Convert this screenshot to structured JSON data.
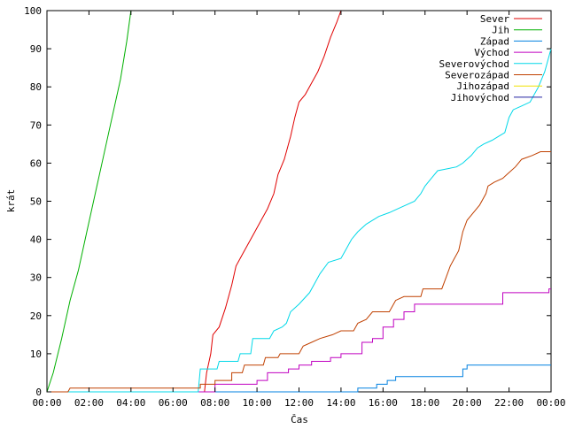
{
  "chart_data": {
    "type": "line",
    "title": "",
    "xlabel": "Čas",
    "ylabel": "krát",
    "ylim": [
      0,
      100
    ],
    "xlim": [
      0,
      24
    ],
    "y_ticks": [
      0,
      10,
      20,
      30,
      40,
      50,
      60,
      70,
      80,
      90,
      100
    ],
    "x_ticks": [
      0,
      2,
      4,
      6,
      8,
      10,
      12,
      14,
      16,
      18,
      20,
      22,
      24
    ],
    "x_tick_labels": [
      "00:00",
      "02:00",
      "04:00",
      "06:00",
      "08:00",
      "10:00",
      "12:00",
      "14:00",
      "16:00",
      "18:00",
      "20:00",
      "22:00",
      "00:00"
    ],
    "grid": false,
    "legend_position": "top-right",
    "series": [
      {
        "name": "Sever",
        "color": "#e00000",
        "points": [
          [
            0,
            0
          ],
          [
            7.5,
            0
          ],
          [
            7.6,
            5
          ],
          [
            7.8,
            10
          ],
          [
            7.9,
            15
          ],
          [
            8.2,
            17
          ],
          [
            8.5,
            22
          ],
          [
            8.8,
            28
          ],
          [
            9.0,
            33
          ],
          [
            9.3,
            36
          ],
          [
            9.6,
            39
          ],
          [
            9.9,
            42
          ],
          [
            10.2,
            45
          ],
          [
            10.5,
            48
          ],
          [
            10.8,
            52
          ],
          [
            11.0,
            57
          ],
          [
            11.3,
            61
          ],
          [
            11.6,
            67
          ],
          [
            11.8,
            72
          ],
          [
            12.0,
            76
          ],
          [
            12.3,
            78
          ],
          [
            12.6,
            81
          ],
          [
            12.9,
            84
          ],
          [
            13.2,
            88
          ],
          [
            13.5,
            93
          ],
          [
            13.8,
            97
          ],
          [
            14.0,
            100
          ]
        ]
      },
      {
        "name": "Jih",
        "color": "#00b000",
        "points": [
          [
            0,
            0
          ],
          [
            0.3,
            5
          ],
          [
            0.7,
            14
          ],
          [
            1.1,
            24
          ],
          [
            1.5,
            32
          ],
          [
            1.9,
            42
          ],
          [
            2.3,
            52
          ],
          [
            2.7,
            62
          ],
          [
            3.1,
            72
          ],
          [
            3.5,
            82
          ],
          [
            3.8,
            92
          ],
          [
            4.0,
            100
          ]
        ]
      },
      {
        "name": "Západ",
        "color": "#0080e0",
        "points": [
          [
            0,
            0
          ],
          [
            14.8,
            0
          ],
          [
            14.8,
            1
          ],
          [
            15.7,
            1
          ],
          [
            15.7,
            2
          ],
          [
            16.2,
            2
          ],
          [
            16.2,
            3
          ],
          [
            16.6,
            3
          ],
          [
            16.6,
            4
          ],
          [
            19.8,
            4
          ],
          [
            19.8,
            6
          ],
          [
            20.0,
            6
          ],
          [
            20.0,
            7
          ],
          [
            24,
            7
          ]
        ]
      },
      {
        "name": "Východ",
        "color": "#c000c0",
        "points": [
          [
            0,
            0
          ],
          [
            8.0,
            0
          ],
          [
            8.0,
            2
          ],
          [
            10.0,
            2
          ],
          [
            10.0,
            3
          ],
          [
            10.5,
            3
          ],
          [
            10.5,
            5
          ],
          [
            11.5,
            5
          ],
          [
            11.5,
            6
          ],
          [
            12.0,
            6
          ],
          [
            12.0,
            7
          ],
          [
            12.6,
            7
          ],
          [
            12.6,
            8
          ],
          [
            13.5,
            8
          ],
          [
            13.5,
            9
          ],
          [
            14.0,
            9
          ],
          [
            14.0,
            10
          ],
          [
            15.0,
            10
          ],
          [
            15.0,
            13
          ],
          [
            15.5,
            13
          ],
          [
            15.5,
            14
          ],
          [
            16.0,
            14
          ],
          [
            16.0,
            17
          ],
          [
            16.5,
            17
          ],
          [
            16.5,
            19
          ],
          [
            17.0,
            19
          ],
          [
            17.0,
            21
          ],
          [
            17.5,
            21
          ],
          [
            17.5,
            23
          ],
          [
            21.7,
            23
          ],
          [
            21.7,
            26
          ],
          [
            23.9,
            26
          ],
          [
            23.9,
            27
          ],
          [
            24,
            27
          ]
        ]
      },
      {
        "name": "Severovýchod",
        "color": "#00d8e8",
        "points": [
          [
            0,
            0
          ],
          [
            7.2,
            0
          ],
          [
            7.3,
            6
          ],
          [
            8.1,
            6
          ],
          [
            8.2,
            8
          ],
          [
            9.1,
            8
          ],
          [
            9.2,
            10
          ],
          [
            9.7,
            10
          ],
          [
            9.8,
            14
          ],
          [
            10.6,
            14
          ],
          [
            10.8,
            16
          ],
          [
            11.2,
            17
          ],
          [
            11.4,
            18
          ],
          [
            11.6,
            21
          ],
          [
            12.0,
            23
          ],
          [
            12.5,
            26
          ],
          [
            12.8,
            29
          ],
          [
            13.0,
            31
          ],
          [
            13.4,
            34
          ],
          [
            14.0,
            35
          ],
          [
            14.2,
            37
          ],
          [
            14.5,
            40
          ],
          [
            14.8,
            42
          ],
          [
            15.2,
            44
          ],
          [
            15.8,
            46
          ],
          [
            16.3,
            47
          ],
          [
            16.7,
            48
          ],
          [
            17.5,
            50
          ],
          [
            17.8,
            52
          ],
          [
            18.0,
            54
          ],
          [
            18.3,
            56
          ],
          [
            18.6,
            58
          ],
          [
            19.5,
            59
          ],
          [
            19.8,
            60
          ],
          [
            20.2,
            62
          ],
          [
            20.5,
            64
          ],
          [
            20.8,
            65
          ],
          [
            21.2,
            66
          ],
          [
            21.5,
            67
          ],
          [
            21.8,
            68
          ],
          [
            22.0,
            72
          ],
          [
            22.2,
            74
          ],
          [
            22.6,
            75
          ],
          [
            23.0,
            76
          ],
          [
            23.4,
            80
          ],
          [
            23.7,
            84
          ],
          [
            24,
            90
          ]
        ]
      },
      {
        "name": "Severozápad",
        "color": "#c04000",
        "points": [
          [
            0,
            0
          ],
          [
            1.0,
            0
          ],
          [
            1.1,
            1
          ],
          [
            7.3,
            1
          ],
          [
            7.3,
            2
          ],
          [
            8.0,
            2
          ],
          [
            8.0,
            3
          ],
          [
            8.8,
            3
          ],
          [
            8.8,
            5
          ],
          [
            9.3,
            5
          ],
          [
            9.4,
            7
          ],
          [
            10.3,
            7
          ],
          [
            10.4,
            9
          ],
          [
            11.0,
            9
          ],
          [
            11.1,
            10
          ],
          [
            12.0,
            10
          ],
          [
            12.2,
            12
          ],
          [
            12.6,
            13
          ],
          [
            13.0,
            14
          ],
          [
            13.6,
            15
          ],
          [
            14.0,
            16
          ],
          [
            14.6,
            16
          ],
          [
            14.8,
            18
          ],
          [
            15.2,
            19
          ],
          [
            15.5,
            21
          ],
          [
            16.3,
            21
          ],
          [
            16.6,
            24
          ],
          [
            17.0,
            25
          ],
          [
            17.8,
            25
          ],
          [
            17.9,
            27
          ],
          [
            18.8,
            27
          ],
          [
            19.0,
            30
          ],
          [
            19.2,
            33
          ],
          [
            19.4,
            35
          ],
          [
            19.6,
            37
          ],
          [
            19.8,
            42
          ],
          [
            20.0,
            45
          ],
          [
            20.3,
            47
          ],
          [
            20.6,
            49
          ],
          [
            20.9,
            52
          ],
          [
            21.0,
            54
          ],
          [
            21.3,
            55
          ],
          [
            21.7,
            56
          ],
          [
            21.9,
            57
          ],
          [
            22.3,
            59
          ],
          [
            22.6,
            61
          ],
          [
            23.1,
            62
          ],
          [
            23.5,
            63
          ],
          [
            24,
            63
          ]
        ]
      },
      {
        "name": "Jihozápad",
        "color": "#f0e000",
        "points": []
      },
      {
        "name": "Jihovýchod",
        "color": "#2020a0",
        "points": []
      }
    ]
  }
}
